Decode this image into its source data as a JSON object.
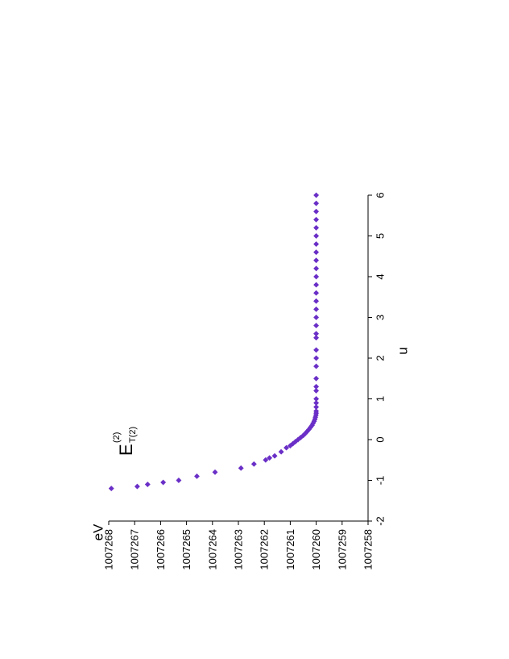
{
  "chart_data": {
    "type": "scatter",
    "orientation": "rotated-90-ccw",
    "xlabel": "u",
    "ylabel": "eV",
    "xlim": [
      -2,
      6
    ],
    "ylim": [
      1007258,
      1007268
    ],
    "x_ticks": [
      "-2",
      "-1",
      "0",
      "1",
      "2",
      "3",
      "4",
      "5",
      "6"
    ],
    "y_ticks": [
      "1007258",
      "1007259",
      "1007260",
      "1007261",
      "1007262",
      "1007263",
      "1007264",
      "1007265",
      "1007266",
      "1007267",
      "1007268"
    ],
    "grid": false,
    "marker": "diamond",
    "marker_color": "#6a2fc7",
    "annotation": {
      "main": "E",
      "superscript": "(2)",
      "subscript": "T(2)"
    },
    "series": [
      {
        "x": [
          -1.2,
          -1.15,
          -1.1,
          -1.05,
          -1.0,
          -0.9,
          -0.8,
          -0.7,
          -0.6,
          -0.5,
          -0.45,
          -0.4,
          -0.3,
          -0.2,
          -0.15,
          -0.1,
          -0.05,
          0.0,
          0.05,
          0.1,
          0.15,
          0.2,
          0.25,
          0.3,
          0.35,
          0.4,
          0.45,
          0.5,
          0.55,
          0.6,
          0.65,
          0.7,
          0.8,
          0.9,
          1.0,
          1.2,
          1.3,
          1.5,
          1.8,
          2.0,
          2.2,
          2.5,
          2.6,
          2.8,
          3.0,
          3.2,
          3.4,
          3.6,
          3.8,
          4.0,
          4.2,
          4.4,
          4.6,
          4.8,
          5.0,
          5.2,
          5.4,
          5.6,
          5.8,
          6.0
        ],
        "y": [
          1007267.9,
          1007266.9,
          1007266.5,
          1007265.9,
          1007265.3,
          1007264.6,
          1007263.9,
          1007262.9,
          1007262.4,
          1007261.95,
          1007261.8,
          1007261.6,
          1007261.35,
          1007261.15,
          1007261.0,
          1007260.9,
          1007260.8,
          1007260.7,
          1007260.6,
          1007260.5,
          1007260.42,
          1007260.35,
          1007260.28,
          1007260.22,
          1007260.16,
          1007260.12,
          1007260.08,
          1007260.05,
          1007260.03,
          1007260.01,
          1007260.0,
          1007260.0,
          1007260.0,
          1007260.0,
          1007260.0,
          1007260.0,
          1007260.0,
          1007260.0,
          1007260.0,
          1007260.0,
          1007260.0,
          1007260.0,
          1007260.0,
          1007260.0,
          1007260.0,
          1007260.0,
          1007260.0,
          1007260.0,
          1007260.0,
          1007260.0,
          1007260.0,
          1007260.0,
          1007260.0,
          1007260.0,
          1007260.0,
          1007260.0,
          1007260.0,
          1007260.0,
          1007260.0,
          1007260.0
        ]
      }
    ]
  }
}
